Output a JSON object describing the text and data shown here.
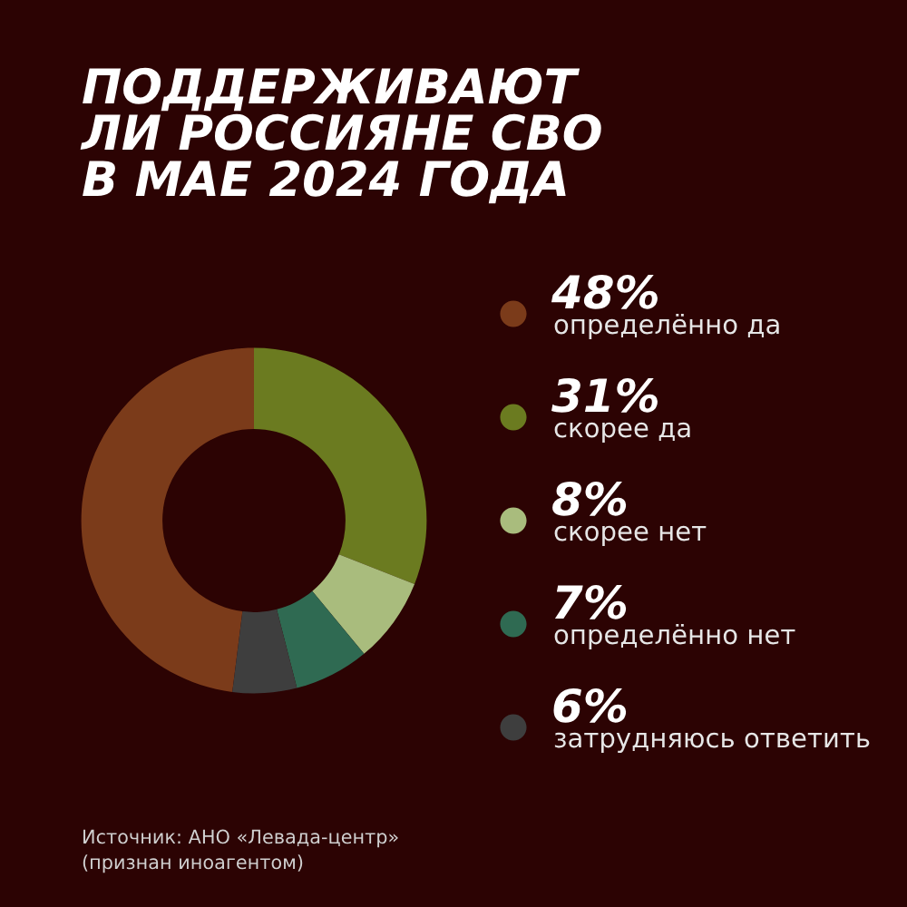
{
  "chart_data": {
    "type": "donut",
    "title": "ПОДДЕРЖИВАЮТ ЛИ РОССИЯНЕ СВО В МАЕ 2024 ГОДА",
    "categories": [
      "определённо да",
      "скорее да",
      "скорее нет",
      "определённо нет",
      "затрудняюсь ответить"
    ],
    "values": [
      48,
      31,
      8,
      7,
      6
    ],
    "value_labels": [
      "48%",
      "31%",
      "8%",
      "7%",
      "6%"
    ],
    "colors": [
      "#7b3b1a",
      "#6b7b20",
      "#a9bc7d",
      "#2f6a52",
      "#3e3e3e"
    ],
    "legend": "right",
    "annotations": [
      "Источник: АНО «Левада-центр» (признан иноагентом)"
    ]
  }
}
